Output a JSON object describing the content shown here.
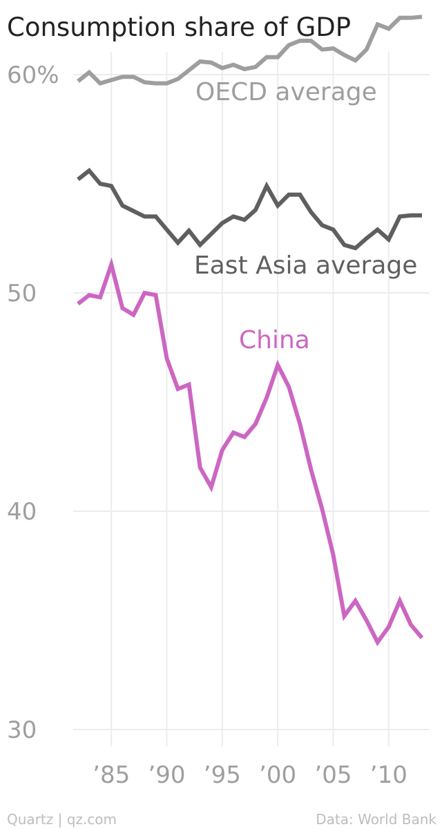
{
  "chart_data": {
    "type": "line",
    "title": "Consumption share of GDP",
    "xlabel": "",
    "ylabel": "",
    "xlim": [
      1981,
      2013
    ],
    "ylim": [
      28.8,
      63
    ],
    "y_ticks": [
      {
        "value": 60,
        "label": "60%"
      },
      {
        "value": 50,
        "label": "50"
      },
      {
        "value": 40,
        "label": "40"
      },
      {
        "value": 30,
        "label": "30"
      }
    ],
    "x_ticks": [
      {
        "value": 1985,
        "label": "’85"
      },
      {
        "value": 1990,
        "label": "’90"
      },
      {
        "value": 1995,
        "label": "’95"
      },
      {
        "value": 2000,
        "label": "’00"
      },
      {
        "value": 2005,
        "label": "’05"
      },
      {
        "value": 2010,
        "label": "’10"
      }
    ],
    "grid": {
      "x": true,
      "y": true
    },
    "legend": "inline labels",
    "x": [
      1982,
      1983,
      1984,
      1985,
      1986,
      1987,
      1988,
      1989,
      1990,
      1991,
      1992,
      1993,
      1994,
      1995,
      1996,
      1997,
      1998,
      1999,
      2000,
      2001,
      2002,
      2003,
      2004,
      2005,
      2006,
      2007,
      2008,
      2009,
      2010,
      2011,
      2012,
      2013
    ],
    "series": [
      {
        "name": "OECD average",
        "color": "#9e9e9e",
        "values": [
          59.7,
          60.1,
          59.6,
          59.75,
          59.9,
          59.9,
          59.65,
          59.6,
          59.6,
          59.8,
          60.2,
          60.6,
          60.55,
          60.3,
          60.45,
          60.25,
          60.35,
          60.8,
          60.8,
          61.35,
          61.55,
          61.55,
          61.15,
          61.2,
          60.9,
          60.65,
          61.15,
          62.3,
          62.1,
          62.6,
          62.6,
          62.65
        ]
      },
      {
        "name": "East Asia average",
        "color": "#5f5f5f",
        "values": [
          55.2,
          55.6,
          55.0,
          54.9,
          54.0,
          53.75,
          53.5,
          53.5,
          52.9,
          52.3,
          52.85,
          52.2,
          52.7,
          53.2,
          53.5,
          53.35,
          53.8,
          54.9,
          54.0,
          54.5,
          54.5,
          53.7,
          53.1,
          52.9,
          52.2,
          52.05,
          52.5,
          52.9,
          52.45,
          53.5,
          53.55,
          53.55
        ]
      },
      {
        "name": "China",
        "color": "#cc66c2",
        "values": [
          49.5,
          49.9,
          49.8,
          51.3,
          49.3,
          49.0,
          50.0,
          49.9,
          47.0,
          45.6,
          45.8,
          42.0,
          41.1,
          42.8,
          43.6,
          43.4,
          44.0,
          45.2,
          46.7,
          45.7,
          44.0,
          41.9,
          40.1,
          38.0,
          35.2,
          35.9,
          35.0,
          34.0,
          34.7,
          35.9,
          34.8,
          34.2
        ]
      }
    ],
    "annotations": [
      {
        "text": "OECD average",
        "series": "OECD average"
      },
      {
        "text": "East Asia average",
        "series": "East Asia average"
      },
      {
        "text": "China",
        "series": "China"
      }
    ],
    "footer_left": "Quartz | qz.com",
    "footer_right": "Data: World Bank"
  }
}
